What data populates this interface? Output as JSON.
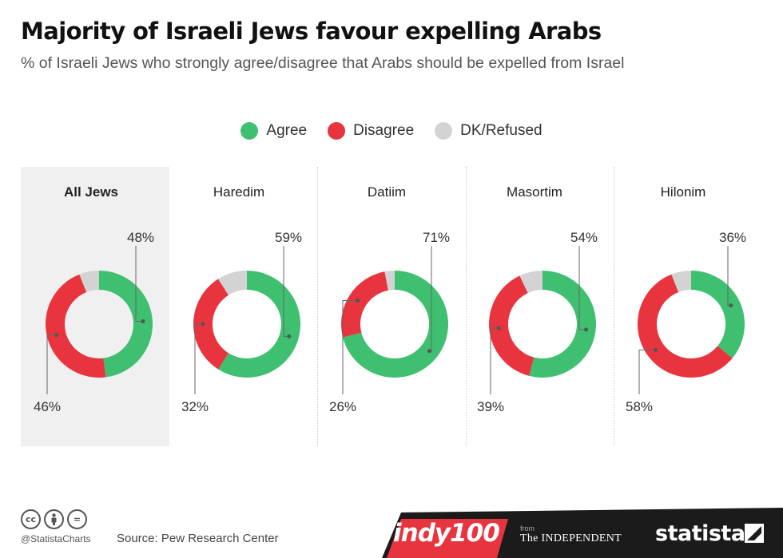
{
  "header": {
    "title": "Majority of Israeli Jews favour expelling Arabs",
    "subtitle": "% of Israeli Jews who strongly agree/disagree that Arabs should be expelled from Israel"
  },
  "legend": [
    {
      "label": "Agree",
      "color": "#3ec070"
    },
    {
      "label": "Disagree",
      "color": "#e8343e"
    },
    {
      "label": "DK/Refused",
      "color": "#d3d3d3"
    }
  ],
  "chart_data": {
    "type": "donut",
    "title": "Majority of Israeli Jews favour expelling Arabs",
    "subtitle": "% of Israeli Jews who strongly agree/disagree that Arabs should be expelled from Israel",
    "series_names": [
      "Agree",
      "Disagree",
      "DK/Refused"
    ],
    "colors": {
      "agree": "#3ec070",
      "disagree": "#e8343e",
      "dk": "#d3d3d3"
    },
    "legend_position": "top-center",
    "groups": [
      {
        "name": "All Jews",
        "agree": 48,
        "disagree": 46,
        "dk": 6,
        "agree_label": "48%",
        "disagree_label": "46%",
        "highlighted": true
      },
      {
        "name": "Haredim",
        "agree": 59,
        "disagree": 32,
        "dk": 9,
        "agree_label": "59%",
        "disagree_label": "32%",
        "highlighted": false
      },
      {
        "name": "Datiim",
        "agree": 71,
        "disagree": 26,
        "dk": 3,
        "agree_label": "71%",
        "disagree_label": "26%",
        "highlighted": false
      },
      {
        "name": "Masortim",
        "agree": 54,
        "disagree": 39,
        "dk": 7,
        "agree_label": "54%",
        "disagree_label": "39%",
        "highlighted": false
      },
      {
        "name": "Hilonim",
        "agree": 36,
        "disagree": 58,
        "dk": 6,
        "agree_label": "36%",
        "disagree_label": "58%",
        "highlighted": false
      }
    ]
  },
  "footer": {
    "handle": "@StatistaCharts",
    "source": "Source: Pew Research Center",
    "indy_logo": "indy100",
    "from_label": "from",
    "independent_logo": "The INDEPENDENT",
    "statista_logo": "statista",
    "cc_icons": [
      "cc",
      "by",
      "="
    ],
    "strip_color": "#1b1b1b",
    "accent_color": "#e8343e"
  }
}
